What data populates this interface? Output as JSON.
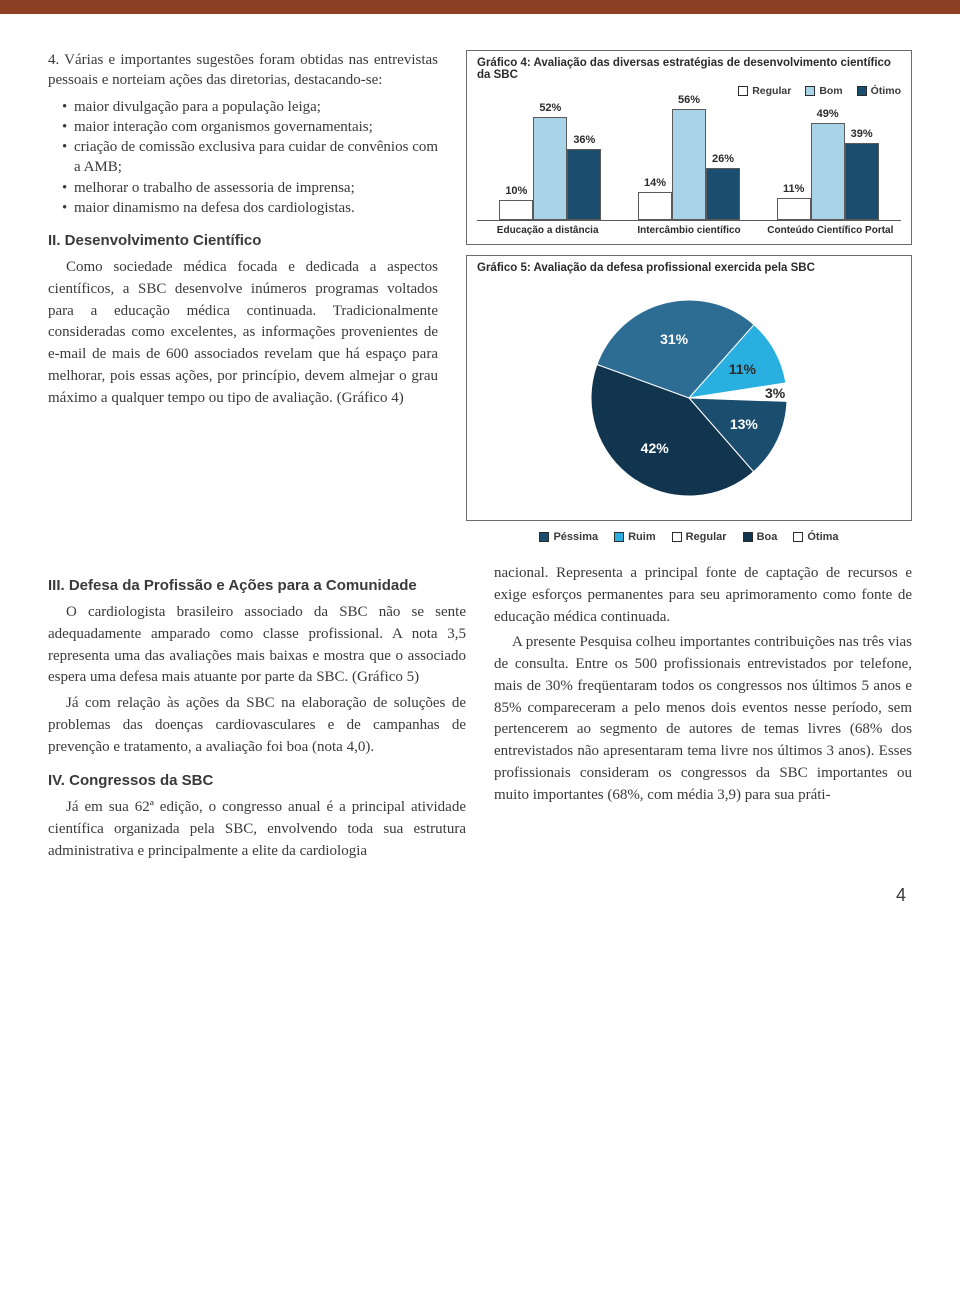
{
  "colors": {
    "topbar": "#8c3f22",
    "regular": "#ffffff",
    "bom": "#a9d4e8",
    "otimo": "#1a4d6e",
    "pie_pessima": "#1a4d6e",
    "pie_ruim": "#29b0e0",
    "pie_regular": "#ffffff",
    "pie_boa": "#11344f",
    "pie_otima": "#2d6d94",
    "border": "#6a6a6a"
  },
  "intro": {
    "lead": "4. Várias e importantes sugestões foram obtidas nas entrevistas pessoais e norteiam ações das diretorias, destacando-se:",
    "bullets": [
      "maior divulgação para a população leiga;",
      "maior interação com organismos governamentais;",
      "criação de comissão exclusiva para cuidar de convênios com a AMB;",
      "melhorar o trabalho de assessoria de imprensa;",
      "maior dinamismo na defesa dos cardiologistas."
    ]
  },
  "sec2": {
    "heading": "II. Desenvolvimento Científico",
    "para": "Como sociedade médica focada e dedicada a aspectos científicos, a SBC desenvolve inúmeros programas voltados para a educação médica continuada. Tradicionalmente consideradas como excelentes, as informações provenientes de e-mail de mais de 600 associados revelam que há espaço para melhorar, pois essas ações, por princípio, devem almejar o grau máximo a qualquer tempo ou tipo de avaliação. (Gráfico 4)"
  },
  "sec3": {
    "heading": "III. Defesa da Profissão e Ações para a Comunidade",
    "para1": "O cardiologista brasileiro associado da SBC não se sente adequadamente amparado como classe profissional. A nota 3,5 representa uma das avaliações mais baixas e mostra que o associado espera uma defesa mais atuante por parte da SBC. (Gráfico 5)",
    "para2": "Já com relação às ações da SBC na elaboração de soluções de problemas das doenças cardiovasculares e de campanhas de prevenção e tratamento, a avaliação foi boa (nota 4,0)."
  },
  "sec4": {
    "heading": "IV. Congressos da SBC",
    "para": "Já em sua 62ª edição, o congresso anual é a principal atividade científica organizada pela SBC, envolvendo toda sua estrutura administrativa e principalmente a elite da cardiologia"
  },
  "rightcol": {
    "para1": "nacional. Representa a principal fonte de captação de recursos e exige esforços permanentes para seu aprimoramento como fonte de educação médica continuada.",
    "para2": "A presente Pesquisa colheu importantes contribuições nas três vias de consulta. Entre os 500 profissionais entrevistados por telefone, mais de 30% freqüentaram todos os congressos nos últimos 5 anos e 85% compareceram a pelo menos dois eventos nesse período, sem pertencerem ao segmento de autores de temas livres (68% dos entrevistados não apresentaram tema livre nos últimos 3 anos). Esses profissionais consideram os congressos da SBC importantes ou muito importantes (68%, com média 3,9) para sua práti-"
  },
  "chart4": {
    "title": "Gráfico 4: Avaliação das diversas estratégias de desenvolvimento científico da SBC",
    "legend": [
      "Regular",
      "Bom",
      "Ótimo"
    ],
    "categories": [
      "Educação a distância",
      "Intercâmbio científico",
      "Conteúdo Científico Portal"
    ],
    "series": {
      "regular": [
        10,
        14,
        11
      ],
      "bom": [
        52,
        56,
        49
      ],
      "otimo": [
        36,
        26,
        39
      ]
    },
    "ymax": 60
  },
  "chart5": {
    "title": "Gráfico 5: Avaliação da defesa profissional exercida pela SBC",
    "legend": [
      "Péssima",
      "Ruim",
      "Regular",
      "Boa",
      "Ótima"
    ],
    "slices": [
      {
        "label": "31%",
        "value": 31,
        "color": "#2d6d94"
      },
      {
        "label": "11%",
        "value": 11,
        "color": "#29b0e0"
      },
      {
        "label": "3%",
        "value": 3,
        "color": "#ffffff"
      },
      {
        "label": "13%",
        "value": 13,
        "color": "#1a4d6e"
      },
      {
        "label": "42%",
        "value": 42,
        "color": "#11344f"
      }
    ]
  },
  "page_number": "4"
}
